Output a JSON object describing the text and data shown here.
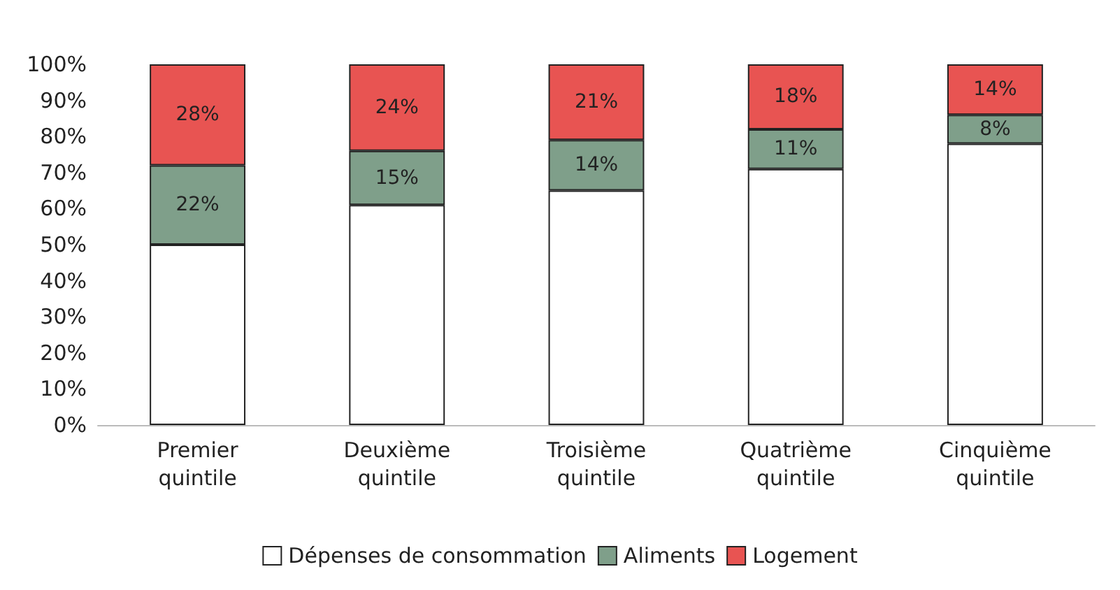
{
  "chart_data": {
    "type": "bar",
    "stacked": true,
    "categories": [
      "Premier quintile",
      "Deuxième quintile",
      "Troisième quintile",
      "Quatrième quintile",
      "Cinquième quintile"
    ],
    "series": [
      {
        "name": "Dépenses de consommation",
        "color": "#ffffff",
        "values": [
          50,
          61,
          65,
          71,
          78
        ]
      },
      {
        "name": "Aliments",
        "color": "#7f9f8a",
        "values": [
          22,
          15,
          14,
          11,
          8
        ],
        "value_labels": [
          "22%",
          "15%",
          "14%",
          "11%",
          "8%"
        ]
      },
      {
        "name": "Logement",
        "color": "#e85452",
        "values": [
          28,
          24,
          21,
          18,
          14
        ],
        "value_labels": [
          "28%",
          "24%",
          "21%",
          "18%",
          "14%"
        ]
      }
    ],
    "ylim": [
      0,
      100
    ],
    "yticks": [
      {
        "value": 0,
        "label": "0%"
      },
      {
        "value": 10,
        "label": "10%"
      },
      {
        "value": 20,
        "label": "20%"
      },
      {
        "value": 30,
        "label": "30%"
      },
      {
        "value": 40,
        "label": "40%"
      },
      {
        "value": 50,
        "label": "50%"
      },
      {
        "value": 60,
        "label": "60%"
      },
      {
        "value": 70,
        "label": "70%"
      },
      {
        "value": 80,
        "label": "80%"
      },
      {
        "value": 90,
        "label": "90%"
      },
      {
        "value": 100,
        "label": "100%"
      }
    ],
    "grid": false,
    "legend": "bottom"
  }
}
